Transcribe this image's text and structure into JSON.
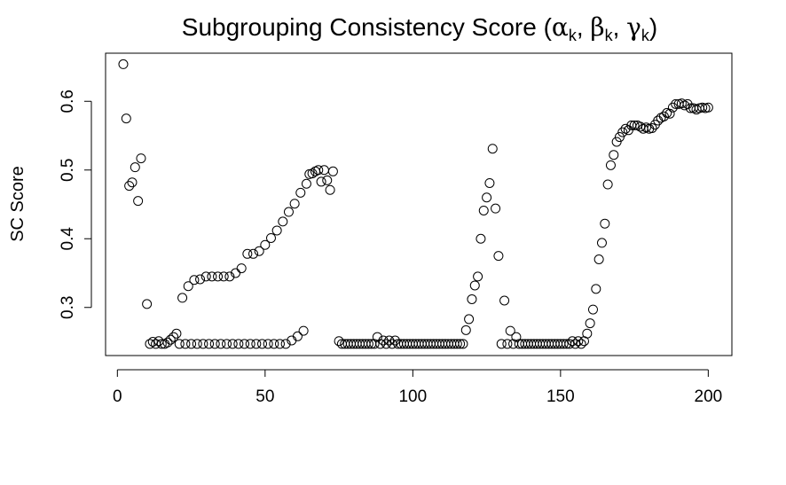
{
  "chart_data": {
    "type": "scatter",
    "title": "Subgrouping Consistency Score (α",
    "title_parts": [
      "Subgrouping Consistency Score (",
      "α",
      "k",
      ", ",
      "β",
      "k",
      ", ",
      "γ",
      "k",
      ")"
    ],
    "xlabel": "",
    "ylabel": "SC Score",
    "xlim": [
      -4,
      208
    ],
    "ylim": [
      0.23,
      0.67
    ],
    "x_ticks": [
      0,
      50,
      100,
      150,
      200
    ],
    "y_ticks": [
      0.3,
      0.4,
      0.5,
      0.6
    ],
    "marker": "open-circle",
    "color": "#000000",
    "points": [
      [
        2,
        0.654
      ],
      [
        3,
        0.575
      ],
      [
        4,
        0.477
      ],
      [
        5,
        0.482
      ],
      [
        6,
        0.504
      ],
      [
        7,
        0.455
      ],
      [
        8,
        0.517
      ],
      [
        10,
        0.305
      ],
      [
        11,
        0.247
      ],
      [
        12,
        0.25
      ],
      [
        13,
        0.247
      ],
      [
        14,
        0.251
      ],
      [
        15,
        0.247
      ],
      [
        16,
        0.247
      ],
      [
        17,
        0.249
      ],
      [
        18,
        0.253
      ],
      [
        19,
        0.257
      ],
      [
        20,
        0.262
      ],
      [
        21,
        0.247
      ],
      [
        22,
        0.314
      ],
      [
        23,
        0.247
      ],
      [
        24,
        0.331
      ],
      [
        25,
        0.247
      ],
      [
        26,
        0.34
      ],
      [
        27,
        0.247
      ],
      [
        28,
        0.341
      ],
      [
        29,
        0.247
      ],
      [
        30,
        0.345
      ],
      [
        31,
        0.247
      ],
      [
        32,
        0.345
      ],
      [
        33,
        0.247
      ],
      [
        34,
        0.345
      ],
      [
        35,
        0.247
      ],
      [
        36,
        0.345
      ],
      [
        37,
        0.247
      ],
      [
        38,
        0.345
      ],
      [
        39,
        0.247
      ],
      [
        40,
        0.35
      ],
      [
        41,
        0.247
      ],
      [
        42,
        0.357
      ],
      [
        43,
        0.247
      ],
      [
        44,
        0.378
      ],
      [
        45,
        0.247
      ],
      [
        46,
        0.378
      ],
      [
        47,
        0.247
      ],
      [
        48,
        0.382
      ],
      [
        49,
        0.247
      ],
      [
        50,
        0.391
      ],
      [
        51,
        0.247
      ],
      [
        52,
        0.401
      ],
      [
        53,
        0.247
      ],
      [
        54,
        0.412
      ],
      [
        55,
        0.247
      ],
      [
        56,
        0.425
      ],
      [
        57,
        0.247
      ],
      [
        58,
        0.439
      ],
      [
        59,
        0.252
      ],
      [
        60,
        0.451
      ],
      [
        61,
        0.258
      ],
      [
        62,
        0.467
      ],
      [
        63,
        0.266
      ],
      [
        64,
        0.48
      ],
      [
        65,
        0.494
      ],
      [
        66,
        0.495
      ],
      [
        67,
        0.498
      ],
      [
        68,
        0.5
      ],
      [
        69,
        0.483
      ],
      [
        70,
        0.5
      ],
      [
        71,
        0.485
      ],
      [
        72,
        0.471
      ],
      [
        73,
        0.498
      ],
      [
        75,
        0.251
      ],
      [
        76,
        0.247
      ],
      [
        77,
        0.247
      ],
      [
        78,
        0.247
      ],
      [
        79,
        0.247
      ],
      [
        80,
        0.247
      ],
      [
        81,
        0.247
      ],
      [
        82,
        0.247
      ],
      [
        83,
        0.247
      ],
      [
        84,
        0.247
      ],
      [
        85,
        0.247
      ],
      [
        86,
        0.247
      ],
      [
        87,
        0.247
      ],
      [
        88,
        0.257
      ],
      [
        89,
        0.247
      ],
      [
        90,
        0.252
      ],
      [
        91,
        0.247
      ],
      [
        92,
        0.252
      ],
      [
        93,
        0.247
      ],
      [
        94,
        0.252
      ],
      [
        95,
        0.247
      ],
      [
        96,
        0.247
      ],
      [
        97,
        0.247
      ],
      [
        98,
        0.247
      ],
      [
        99,
        0.247
      ],
      [
        100,
        0.247
      ],
      [
        101,
        0.247
      ],
      [
        102,
        0.247
      ],
      [
        103,
        0.247
      ],
      [
        104,
        0.247
      ],
      [
        105,
        0.247
      ],
      [
        106,
        0.247
      ],
      [
        107,
        0.247
      ],
      [
        108,
        0.247
      ],
      [
        109,
        0.247
      ],
      [
        110,
        0.247
      ],
      [
        111,
        0.247
      ],
      [
        112,
        0.247
      ],
      [
        113,
        0.247
      ],
      [
        114,
        0.247
      ],
      [
        115,
        0.247
      ],
      [
        116,
        0.247
      ],
      [
        117,
        0.247
      ],
      [
        118,
        0.267
      ],
      [
        119,
        0.283
      ],
      [
        120,
        0.312
      ],
      [
        121,
        0.332
      ],
      [
        122,
        0.345
      ],
      [
        123,
        0.4
      ],
      [
        124,
        0.441
      ],
      [
        125,
        0.46
      ],
      [
        126,
        0.481
      ],
      [
        127,
        0.531
      ],
      [
        128,
        0.444
      ],
      [
        129,
        0.375
      ],
      [
        130,
        0.247
      ],
      [
        131,
        0.31
      ],
      [
        132,
        0.247
      ],
      [
        133,
        0.266
      ],
      [
        134,
        0.247
      ],
      [
        135,
        0.257
      ],
      [
        136,
        0.247
      ],
      [
        137,
        0.247
      ],
      [
        138,
        0.247
      ],
      [
        139,
        0.247
      ],
      [
        140,
        0.247
      ],
      [
        141,
        0.247
      ],
      [
        142,
        0.247
      ],
      [
        143,
        0.247
      ],
      [
        144,
        0.247
      ],
      [
        145,
        0.247
      ],
      [
        146,
        0.247
      ],
      [
        147,
        0.247
      ],
      [
        148,
        0.247
      ],
      [
        149,
        0.247
      ],
      [
        150,
        0.247
      ],
      [
        151,
        0.247
      ],
      [
        152,
        0.247
      ],
      [
        153,
        0.247
      ],
      [
        154,
        0.251
      ],
      [
        155,
        0.247
      ],
      [
        156,
        0.251
      ],
      [
        157,
        0.247
      ],
      [
        158,
        0.251
      ],
      [
        159,
        0.262
      ],
      [
        160,
        0.277
      ],
      [
        161,
        0.297
      ],
      [
        162,
        0.327
      ],
      [
        163,
        0.37
      ],
      [
        164,
        0.394
      ],
      [
        165,
        0.422
      ],
      [
        166,
        0.479
      ],
      [
        167,
        0.507
      ],
      [
        168,
        0.522
      ],
      [
        169,
        0.541
      ],
      [
        170,
        0.548
      ],
      [
        171,
        0.555
      ],
      [
        172,
        0.56
      ],
      [
        173,
        0.558
      ],
      [
        174,
        0.565
      ],
      [
        175,
        0.565
      ],
      [
        176,
        0.565
      ],
      [
        177,
        0.563
      ],
      [
        178,
        0.56
      ],
      [
        179,
        0.562
      ],
      [
        180,
        0.56
      ],
      [
        181,
        0.561
      ],
      [
        182,
        0.566
      ],
      [
        183,
        0.572
      ],
      [
        184,
        0.576
      ],
      [
        185,
        0.578
      ],
      [
        186,
        0.583
      ],
      [
        187,
        0.582
      ],
      [
        188,
        0.591
      ],
      [
        189,
        0.596
      ],
      [
        190,
        0.596
      ],
      [
        191,
        0.597
      ],
      [
        192,
        0.594
      ],
      [
        193,
        0.596
      ],
      [
        194,
        0.59
      ],
      [
        195,
        0.59
      ],
      [
        196,
        0.588
      ],
      [
        197,
        0.59
      ],
      [
        198,
        0.591
      ],
      [
        199,
        0.59
      ],
      [
        200,
        0.591
      ]
    ],
    "grid": false,
    "box": true
  }
}
